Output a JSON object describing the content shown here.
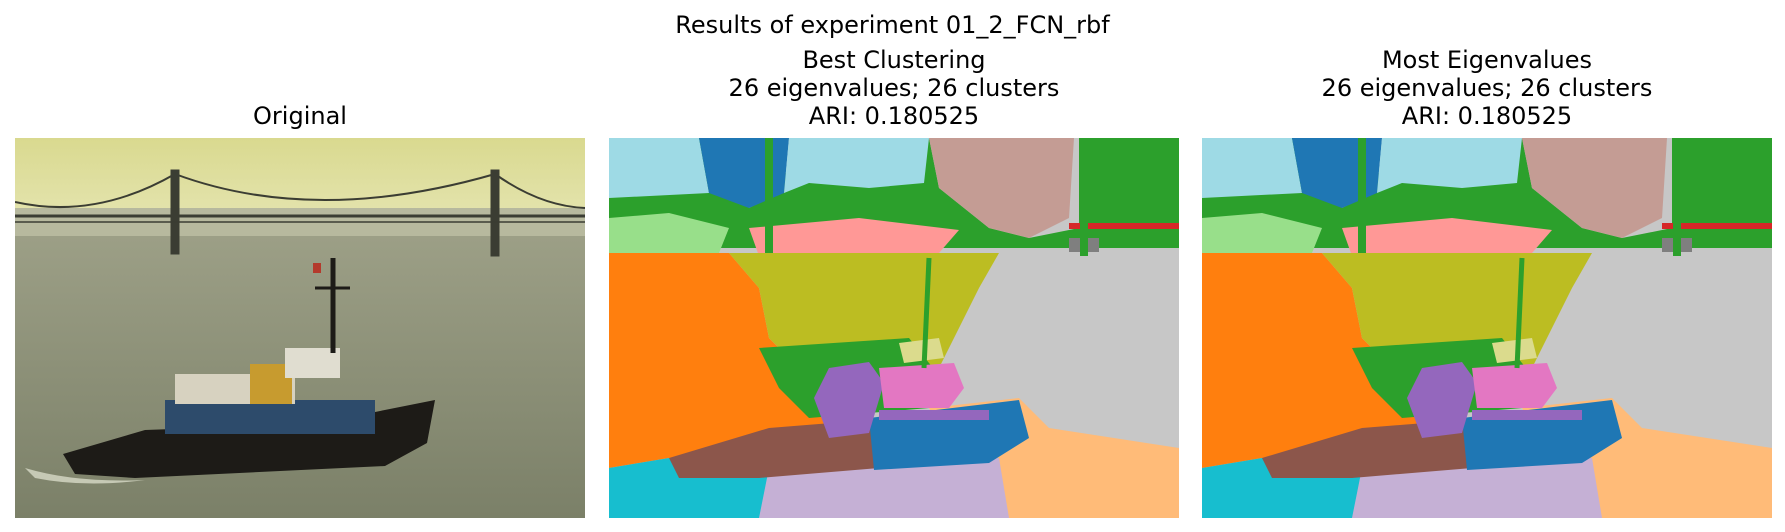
{
  "figure": {
    "suptitle": "Results of experiment 01_2_FCN_rbf"
  },
  "panels": [
    {
      "lines": [
        "Original"
      ]
    },
    {
      "lines": [
        "Best Clustering",
        "26 eigenvalues; 26 clusters",
        "ARI: 0.180525"
      ]
    },
    {
      "lines": [
        "Most Eigenvalues",
        "26 eigenvalues; 26 clusters",
        "ARI: 0.180525"
      ]
    }
  ],
  "palette": {
    "orange": "#ff7f0e",
    "olive": "#bcbd22",
    "gray": "#c7c7c7",
    "teal": "#17becf",
    "lavender": "#c5b0d5",
    "peach": "#ffbb78",
    "blue": "#1f77b4",
    "skyblue": "#9edae5",
    "rose": "#c49c94",
    "green": "#2ca02c",
    "lightgreen": "#98df8a",
    "pink": "#ff9896",
    "purple": "#9467bd",
    "magenta": "#e377c2",
    "brown": "#8c564b",
    "red": "#d62728",
    "darkgray": "#7f7f7f",
    "paleyellow": "#dbdb8d"
  }
}
